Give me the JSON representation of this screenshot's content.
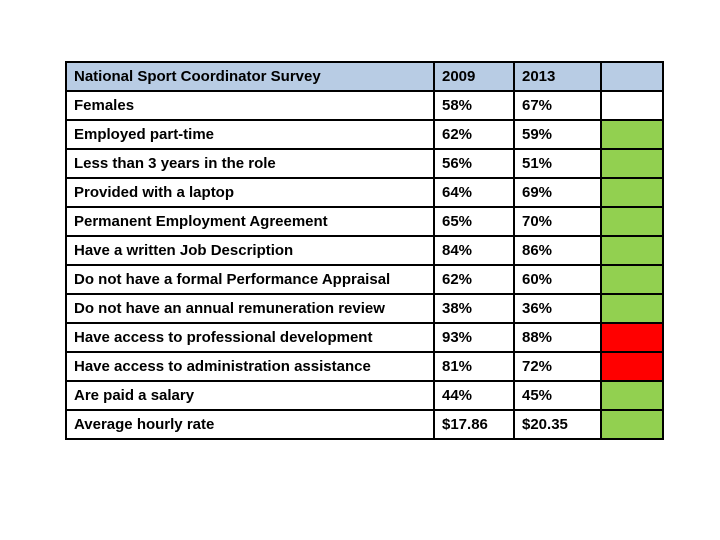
{
  "page": {
    "background": "#ffffff"
  },
  "chart_data": {
    "type": "table",
    "title": "National Sport Coordinator Survey",
    "columns": [
      "2009",
      "2013"
    ],
    "status_column_header": "",
    "colors": {
      "header_bg": "#b8cce4",
      "border": "#000000",
      "text": "#000000",
      "positive": "#92d050",
      "negative": "#ff0000",
      "none": "#ffffff"
    },
    "rows": [
      {
        "label": "Females",
        "y2009": "58%",
        "y2013": "67%",
        "status": "none"
      },
      {
        "label": "Employed part-time",
        "y2009": "62%",
        "y2013": "59%",
        "status": "positive"
      },
      {
        "label": "Less than 3 years in the role",
        "y2009": "56%",
        "y2013": "51%",
        "status": "positive"
      },
      {
        "label": "Provided with a laptop",
        "y2009": "64%",
        "y2013": "69%",
        "status": "positive"
      },
      {
        "label": "Permanent Employment Agreement",
        "y2009": "65%",
        "y2013": "70%",
        "status": "positive"
      },
      {
        "label": "Have a written Job Description",
        "y2009": "84%",
        "y2013": "86%",
        "status": "positive"
      },
      {
        "label": "Do not have a formal Performance Appraisal",
        "y2009": "62%",
        "y2013": "60%",
        "status": "positive"
      },
      {
        "label": "Do not have an annual remuneration review",
        "y2009": "38%",
        "y2013": "36%",
        "status": "positive"
      },
      {
        "label": "Have access to professional development",
        "y2009": "93%",
        "y2013": "88%",
        "status": "negative"
      },
      {
        "label": "Have access to administration assistance",
        "y2009": "81%",
        "y2013": "72%",
        "status": "negative"
      },
      {
        "label": "Are paid a salary",
        "y2009": "44%",
        "y2013": "45%",
        "status": "positive"
      },
      {
        "label": "Average hourly rate",
        "y2009": "$17.86",
        "y2013": "$20.35",
        "status": "positive"
      }
    ]
  }
}
